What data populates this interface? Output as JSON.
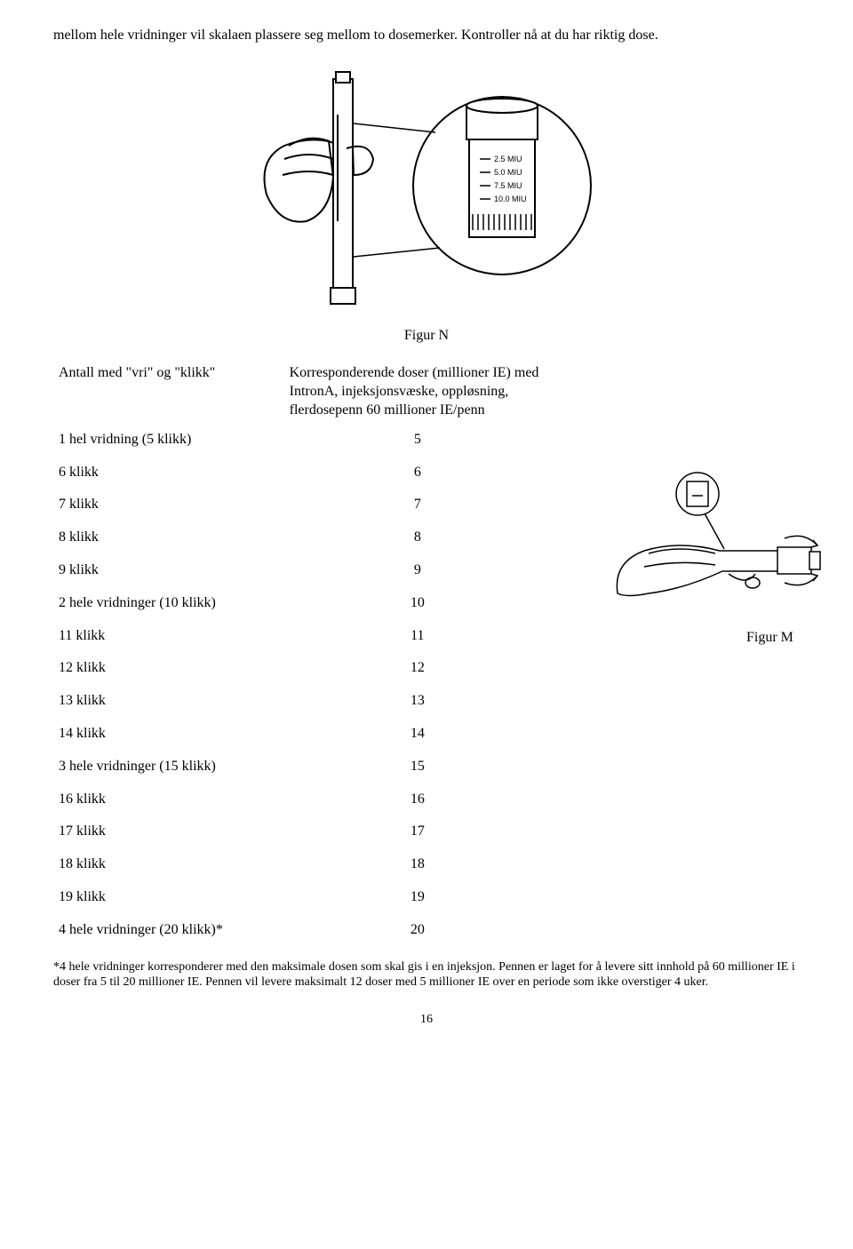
{
  "intro": "mellom hele vridninger vil skalaen plassere seg mellom to dosemerker. Kontroller nå at du har riktig dose.",
  "figure_n": {
    "label": "Figur N",
    "scale_labels": [
      "2.5 MIU",
      "5.0 MIU",
      "7.5 MIU",
      "10.0 MIU"
    ]
  },
  "table": {
    "col1_header": "Antall med \"vri\" og \"klikk\"",
    "col2_header": "Korresponderende doser (millioner IE) med IntronA, injeksjonsvæske, oppløsning, flerdosepenn 60 millioner IE/penn",
    "rows": [
      {
        "label": "1 hel vridning (5 klikk)",
        "value": "5",
        "indent": false
      },
      {
        "label": "6 klikk",
        "value": "6",
        "indent": true
      },
      {
        "label": "7 klikk",
        "value": "7",
        "indent": true
      },
      {
        "label": "8 klikk",
        "value": "8",
        "indent": true
      },
      {
        "label": "9 klikk",
        "value": "9",
        "indent": true
      },
      {
        "label": "2 hele vridninger (10 klikk)",
        "value": "10",
        "indent": false
      },
      {
        "label": "11 klikk",
        "value": "11",
        "indent": true
      },
      {
        "label": "12 klikk",
        "value": "12",
        "indent": true
      },
      {
        "label": "13 klikk",
        "value": "13",
        "indent": true
      },
      {
        "label": "14 klikk",
        "value": "14",
        "indent": true
      },
      {
        "label": "3 hele vridninger (15 klikk)",
        "value": "15",
        "indent": false
      },
      {
        "label": "16 klikk",
        "value": "16",
        "indent": true
      },
      {
        "label": "17 klikk",
        "value": "17",
        "indent": true
      },
      {
        "label": "18 klikk",
        "value": "18",
        "indent": true
      },
      {
        "label": "19 klikk",
        "value": "19",
        "indent": true
      },
      {
        "label": "4 hele vridninger (20 klikk)*",
        "value": "20",
        "indent": false
      }
    ]
  },
  "figure_m": {
    "label": "Figur M"
  },
  "footnote": "*4 hele vridninger korresponderer med den maksimale dosen som skal gis i en injeksjon. Pennen er laget for å levere sitt innhold på 60 millioner IE i doser fra 5 til 20 millioner IE. Pennen vil levere maksimalt 12 doser med 5 millioner IE over en periode som ikke overstiger 4 uker.",
  "page_number": "16",
  "colors": {
    "text": "#000000",
    "background": "#ffffff"
  }
}
